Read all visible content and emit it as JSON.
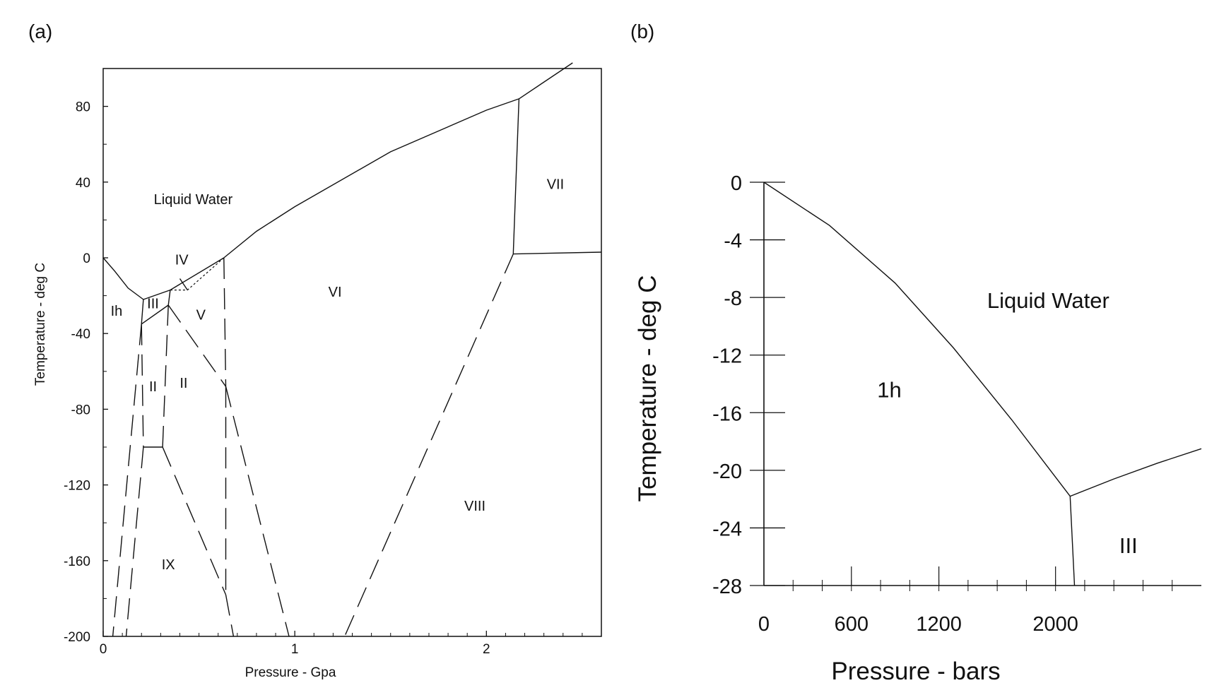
{
  "chart_data": [
    {
      "panel_label": "(a)",
      "type": "line",
      "title": "",
      "xlabel": "Pressure - Gpa",
      "ylabel": "Temperature - deg C",
      "xlim": [
        0,
        2.6
      ],
      "ylim": [
        -200,
        100
      ],
      "x_ticks": [
        0,
        1,
        2
      ],
      "y_ticks": [
        80,
        40,
        0,
        -40,
        -80,
        -120,
        -160,
        -200
      ],
      "grid": false,
      "legend": "none",
      "regions": [
        {
          "label": "Liquid Water",
          "x": 0.47,
          "y": 31
        },
        {
          "label": "Ih",
          "x": 0.07,
          "y": -28
        },
        {
          "label": "III",
          "x": 0.26,
          "y": -24
        },
        {
          "label": "IV",
          "x": 0.41,
          "y": -1
        },
        {
          "label": "V",
          "x": 0.51,
          "y": -30
        },
        {
          "label": "VI",
          "x": 1.21,
          "y": -18
        },
        {
          "label": "VII",
          "x": 2.36,
          "y": 39
        },
        {
          "label": "VIII",
          "x": 1.94,
          "y": -131
        },
        {
          "label": "II",
          "x": 0.26,
          "y": -68
        },
        {
          "label": "II",
          "x": 0.42,
          "y": -66
        },
        {
          "label": "IX",
          "x": 0.34,
          "y": -162
        }
      ],
      "series": [
        {
          "style": "solid",
          "points": [
            [
              0,
              0
            ],
            [
              0.06,
              -7
            ],
            [
              0.13,
              -16
            ],
            [
              0.21,
              -22
            ]
          ]
        },
        {
          "style": "solid",
          "points": [
            [
              0.21,
              -22
            ],
            [
              0.35,
              -17
            ],
            [
              0.63,
              0
            ]
          ]
        },
        {
          "style": "solid",
          "points": [
            [
              0.63,
              0
            ],
            [
              0.8,
              14
            ],
            [
              1.0,
              27
            ],
            [
              1.5,
              56
            ],
            [
              2.0,
              78
            ],
            [
              2.17,
              84
            ]
          ]
        },
        {
          "style": "solid",
          "points": [
            [
              2.17,
              84
            ],
            [
              2.45,
              103
            ]
          ]
        },
        {
          "style": "solid",
          "points": [
            [
              2.17,
              84
            ],
            [
              2.14,
              2
            ]
          ]
        },
        {
          "style": "solid",
          "points": [
            [
              2.14,
              2
            ],
            [
              2.6,
              3
            ]
          ]
        },
        {
          "style": "solid",
          "points": [
            [
              0.21,
              -22
            ],
            [
              0.2,
              -35
            ]
          ]
        },
        {
          "style": "solid",
          "points": [
            [
              0.2,
              -35
            ],
            [
              0.34,
              -25
            ]
          ]
        },
        {
          "style": "solid",
          "points": [
            [
              0.34,
              -25
            ],
            [
              0.35,
              -17
            ]
          ]
        },
        {
          "style": "dotted",
          "points": [
            [
              0.35,
              -17
            ],
            [
              0.44,
              -17
            ],
            [
              0.63,
              0
            ]
          ]
        },
        {
          "style": "solid",
          "points": [
            [
              0.44,
              -17
            ],
            [
              0.4,
              -11
            ]
          ]
        },
        {
          "style": "dashed",
          "points": [
            [
              0.63,
              0
            ],
            [
              0.64,
              -68
            ]
          ]
        },
        {
          "style": "dashed",
          "points": [
            [
              0.34,
              -25
            ],
            [
              0.64,
              -68
            ]
          ]
        },
        {
          "style": "dashed",
          "points": [
            [
              0.64,
              -68
            ],
            [
              0.97,
              -200
            ]
          ]
        },
        {
          "style": "dashed",
          "points": [
            [
              0.64,
              -68
            ],
            [
              0.64,
              -178
            ]
          ]
        },
        {
          "style": "dashed",
          "points": [
            [
              0.64,
              -178
            ],
            [
              0.68,
              -200
            ]
          ]
        },
        {
          "style": "dashed",
          "points": [
            [
              0.2,
              -35
            ],
            [
              0.21,
              -100
            ]
          ]
        },
        {
          "style": "dashed",
          "points": [
            [
              0.21,
              -100
            ],
            [
              0.31,
              -100
            ]
          ]
        },
        {
          "style": "dashed",
          "points": [
            [
              0.31,
              -100
            ],
            [
              0.34,
              -25
            ]
          ]
        },
        {
          "style": "dashed",
          "points": [
            [
              0.31,
              -100
            ],
            [
              0.64,
              -178
            ]
          ]
        },
        {
          "style": "dashed",
          "points": [
            [
              0.21,
              -100
            ],
            [
              0.12,
              -200
            ]
          ]
        },
        {
          "style": "dashed",
          "points": [
            [
              0.2,
              -35
            ],
            [
              0.05,
              -200
            ]
          ]
        },
        {
          "style": "dashed",
          "points": [
            [
              2.14,
              2
            ],
            [
              1.26,
              -200
            ]
          ]
        }
      ]
    },
    {
      "panel_label": "(b)",
      "type": "line",
      "title": "",
      "xlabel": "Pressure - bars",
      "ylabel": "Temperature - deg C",
      "xlim": [
        0,
        3000
      ],
      "ylim": [
        -28,
        0
      ],
      "x_ticks": [
        0,
        600,
        1200,
        2000
      ],
      "x_minor_step": 200,
      "y_ticks": [
        0,
        -4,
        -8,
        -12,
        -16,
        -20,
        -24,
        -28
      ],
      "grid": false,
      "legend": "none",
      "regions": [
        {
          "label": "Liquid Water",
          "x": 1950,
          "y": -8.2
        },
        {
          "label": "1h",
          "x": 860,
          "y": -14.4
        },
        {
          "label": "III",
          "x": 2500,
          "y": -25.2
        }
      ],
      "series": [
        {
          "style": "solid",
          "points": [
            [
              0,
              0
            ],
            [
              450,
              -3
            ],
            [
              900,
              -7
            ],
            [
              1300,
              -11.5
            ],
            [
              1700,
              -16.5
            ],
            [
              2100,
              -21.8
            ]
          ]
        },
        {
          "style": "solid",
          "points": [
            [
              2100,
              -21.8
            ],
            [
              2400,
              -20.6
            ],
            [
              2700,
              -19.5
            ],
            [
              3000,
              -18.5
            ]
          ]
        },
        {
          "style": "solid",
          "points": [
            [
              2100,
              -21.8
            ],
            [
              2130,
              -28
            ]
          ]
        }
      ]
    }
  ]
}
